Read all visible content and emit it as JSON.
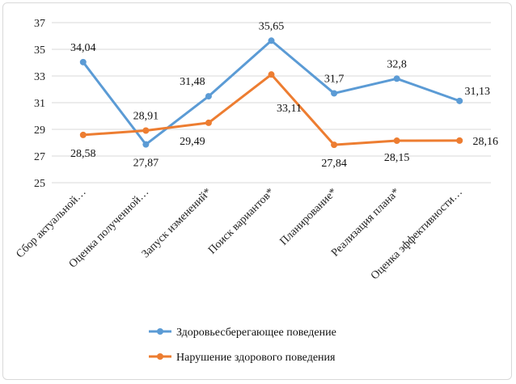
{
  "chart_data": {
    "type": "line",
    "categories": [
      "Сбор актуальной…",
      "Оценка полученной…",
      "Запуск изменений*",
      "Поиск вариантов*",
      "Планирование*",
      "Реализация плана*",
      "Оценка эффективности…"
    ],
    "ylim": [
      25,
      37
    ],
    "yticks": [
      "25",
      "27",
      "29",
      "31",
      "33",
      "35",
      "37"
    ],
    "grid": "horizontal",
    "legend_position": "bottom",
    "series": [
      {
        "name": "Здоровьесберегающее поведение",
        "color": "#5b9bd5",
        "values": [
          34.04,
          27.87,
          31.48,
          35.65,
          31.7,
          32.8,
          31.13
        ],
        "labels": [
          "34,04",
          "27,87",
          "31,48",
          "35,65",
          "31,7",
          "32,8",
          "31,13"
        ]
      },
      {
        "name": "Нарушение здорового поведения",
        "color": "#ed7d31",
        "values": [
          28.58,
          28.91,
          29.49,
          33.11,
          27.84,
          28.15,
          28.16
        ],
        "labels": [
          "28,58",
          "28,91",
          "29,49",
          "33,11",
          "27,84",
          "28,15",
          "28,16"
        ]
      }
    ]
  }
}
